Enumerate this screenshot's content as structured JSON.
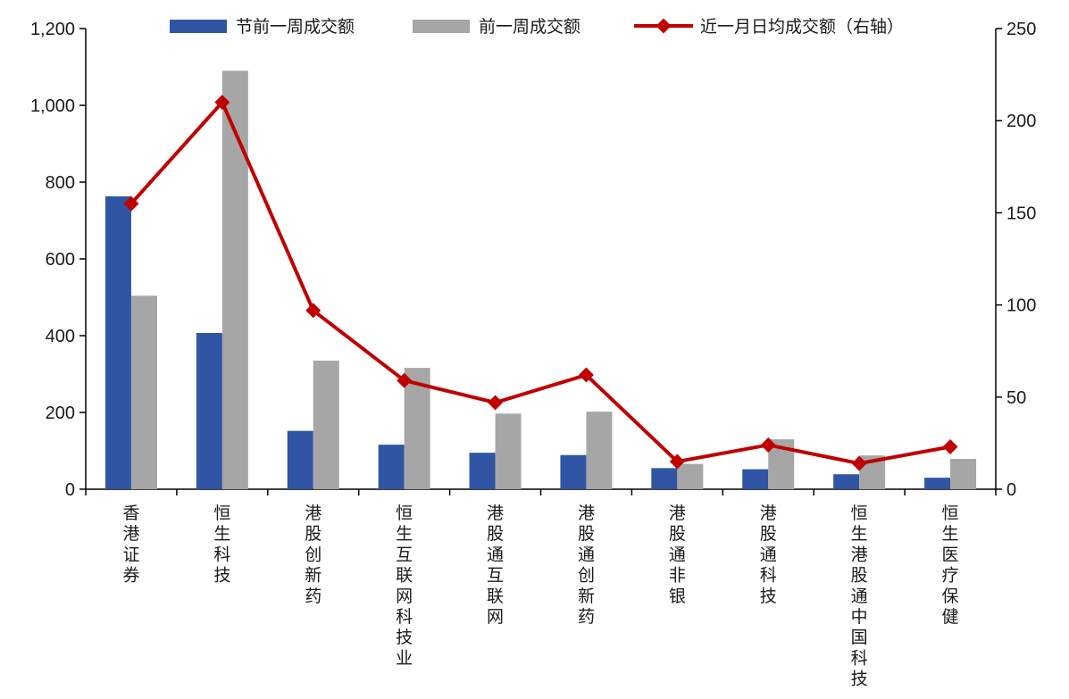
{
  "chart_data": {
    "type": "bar",
    "categories": [
      "香港证券",
      "恒生科技",
      "港股创新药",
      "恒生互联网科技业",
      "港股通互联网",
      "港股通创新药",
      "港股通非银",
      "港股通科技",
      "恒生港股通中国科技",
      "恒生医疗保健"
    ],
    "series": [
      {
        "name": "节前一周成交额",
        "type": "bar",
        "axis": "left",
        "color": "#2f55a4",
        "values": [
          763,
          407,
          152,
          116,
          95,
          89,
          55,
          52,
          39,
          30
        ]
      },
      {
        "name": "前一周成交额",
        "type": "bar",
        "axis": "left",
        "color": "#a6a6a6",
        "values": [
          504,
          1090,
          335,
          316,
          197,
          202,
          66,
          130,
          88,
          79
        ]
      },
      {
        "name": "近一月日均成交额（右轴）",
        "type": "line",
        "axis": "right",
        "color": "#c00000",
        "values": [
          155,
          210,
          97,
          59,
          47,
          62,
          15,
          24,
          14,
          23
        ]
      }
    ],
    "yleft": {
      "min": 0,
      "max": 1200,
      "step": 200
    },
    "yright": {
      "min": 0,
      "max": 250,
      "step": 50
    },
    "legend_position": "top",
    "grid": false
  }
}
